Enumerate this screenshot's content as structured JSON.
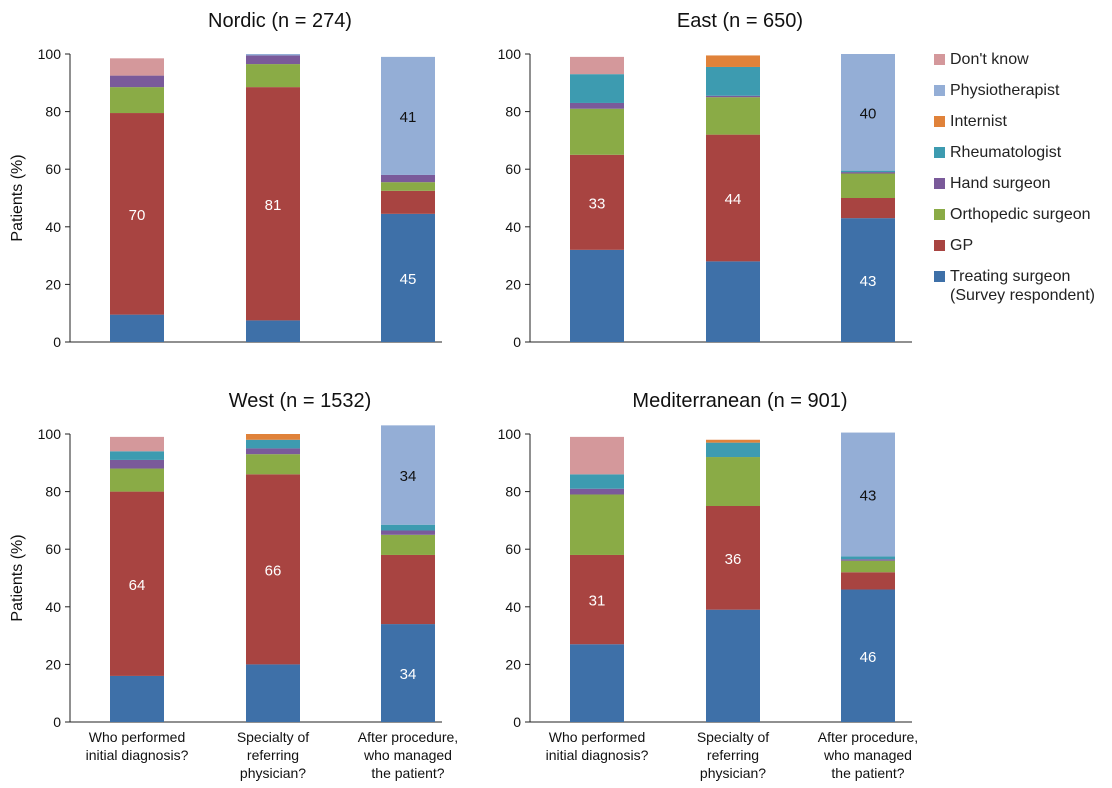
{
  "legend": [
    {
      "key": "dontknow",
      "label": "Don't know",
      "color": "#d4989b"
    },
    {
      "key": "physio",
      "label": "Physiotherapist",
      "color": "#94aed6"
    },
    {
      "key": "internist",
      "label": "Internist",
      "color": "#e0823a"
    },
    {
      "key": "rheum",
      "label": "Rheumatologist",
      "color": "#3d9bb0"
    },
    {
      "key": "hand",
      "label": "Hand surgeon",
      "color": "#7a5a9a"
    },
    {
      "key": "ortho",
      "label": "Orthopedic surgeon",
      "color": "#8aab46"
    },
    {
      "key": "gp",
      "label": "GP",
      "color": "#a84441"
    },
    {
      "key": "treating",
      "label": "Treating surgeon\n(Survey respondent)",
      "color": "#3e70a8"
    }
  ],
  "chart_data": [
    {
      "type": "bar",
      "stacked": true,
      "title": "Nordic (n = 274)",
      "ylabel": "Patients (%)",
      "ylim": [
        0,
        100
      ],
      "yticks": [
        0,
        20,
        40,
        60,
        80,
        100
      ],
      "categories": [
        "Who performed\ninitial diagnosis?",
        "Specialty of\nreferring\nphysician?",
        "After procedure,\nwho managed\nthe patient?"
      ],
      "series": [
        {
          "name": "Treating surgeon (Survey respondent)",
          "values": [
            9.5,
            7.5,
            44.5
          ],
          "labels": [
            "",
            "",
            "45"
          ]
        },
        {
          "name": "GP",
          "values": [
            70,
            81,
            8
          ],
          "labels": [
            "70",
            "81",
            ""
          ]
        },
        {
          "name": "Orthopedic surgeon",
          "values": [
            9,
            8,
            3
          ],
          "labels": [
            "",
            "",
            ""
          ]
        },
        {
          "name": "Hand surgeon",
          "values": [
            4,
            3,
            2.5
          ],
          "labels": [
            "",
            "",
            ""
          ]
        },
        {
          "name": "Rheumatologist",
          "values": [
            0,
            0,
            0
          ],
          "labels": [
            "",
            "",
            ""
          ]
        },
        {
          "name": "Internist",
          "values": [
            0,
            0,
            0
          ],
          "labels": [
            "",
            "",
            ""
          ]
        },
        {
          "name": "Physiotherapist",
          "values": [
            0,
            0.5,
            41
          ],
          "labels": [
            "",
            "",
            "41"
          ]
        },
        {
          "name": "Don't know",
          "values": [
            6,
            0,
            0
          ],
          "labels": [
            "",
            "",
            ""
          ]
        }
      ]
    },
    {
      "type": "bar",
      "stacked": true,
      "title": "East (n = 650)",
      "ylabel": "",
      "ylim": [
        0,
        100
      ],
      "yticks": [
        0,
        20,
        40,
        60,
        80,
        100
      ],
      "categories": [
        "Who performed\ninitial diagnosis?",
        "Specialty of\nreferring\nphysician?",
        "After procedure,\nwho managed\nthe patient?"
      ],
      "series": [
        {
          "name": "Treating surgeon (Survey respondent)",
          "values": [
            32,
            28,
            43
          ],
          "labels": [
            "",
            "",
            "43"
          ]
        },
        {
          "name": "GP",
          "values": [
            33,
            44,
            7
          ],
          "labels": [
            "33",
            "44",
            ""
          ]
        },
        {
          "name": "Orthopedic surgeon",
          "values": [
            16,
            13,
            8.5
          ],
          "labels": [
            "",
            "",
            ""
          ]
        },
        {
          "name": "Hand surgeon",
          "values": [
            2,
            0.5,
            0.5
          ],
          "labels": [
            "",
            "",
            ""
          ]
        },
        {
          "name": "Rheumatologist",
          "values": [
            10,
            10,
            0.5
          ],
          "labels": [
            "",
            "",
            ""
          ]
        },
        {
          "name": "Internist",
          "values": [
            0,
            4,
            0
          ],
          "labels": [
            "",
            "",
            ""
          ]
        },
        {
          "name": "Physiotherapist",
          "values": [
            0,
            0,
            40.5
          ],
          "labels": [
            "",
            "",
            "40"
          ]
        },
        {
          "name": "Don't know",
          "values": [
            6,
            0,
            0
          ],
          "labels": [
            "",
            "",
            ""
          ]
        }
      ]
    },
    {
      "type": "bar",
      "stacked": true,
      "title": "West (n = 1532)",
      "ylabel": "Patients (%)",
      "ylim": [
        0,
        100
      ],
      "yticks": [
        0,
        20,
        40,
        60,
        80,
        100
      ],
      "categories": [
        "Who performed\ninitial diagnosis?",
        "Specialty of\nreferring\nphysician?",
        "After procedure,\nwho managed\nthe patient?"
      ],
      "series": [
        {
          "name": "Treating surgeon (Survey respondent)",
          "values": [
            16,
            20,
            34
          ],
          "labels": [
            "",
            "",
            "34"
          ]
        },
        {
          "name": "GP",
          "values": [
            64,
            66,
            24
          ],
          "labels": [
            "64",
            "66",
            ""
          ]
        },
        {
          "name": "Orthopedic surgeon",
          "values": [
            8,
            7,
            7
          ],
          "labels": [
            "",
            "",
            ""
          ]
        },
        {
          "name": "Hand surgeon",
          "values": [
            3,
            2,
            1.5
          ],
          "labels": [
            "",
            "",
            ""
          ]
        },
        {
          "name": "Rheumatologist",
          "values": [
            3,
            3,
            2
          ],
          "labels": [
            "",
            "",
            ""
          ]
        },
        {
          "name": "Internist",
          "values": [
            0,
            2,
            0
          ],
          "labels": [
            "",
            "",
            ""
          ]
        },
        {
          "name": "Physiotherapist",
          "values": [
            0,
            0,
            34.5
          ],
          "labels": [
            "",
            "",
            "34"
          ]
        },
        {
          "name": "Don't know",
          "values": [
            5,
            0,
            0
          ],
          "labels": [
            "",
            "",
            ""
          ]
        }
      ]
    },
    {
      "type": "bar",
      "stacked": true,
      "title": "Mediterranean (n = 901)",
      "ylabel": "",
      "ylim": [
        0,
        100
      ],
      "yticks": [
        0,
        20,
        40,
        60,
        80,
        100
      ],
      "categories": [
        "Who performed\ninitial diagnosis?",
        "Specialty of\nreferring\nphysician?",
        "After procedure,\nwho managed\nthe patient?"
      ],
      "series": [
        {
          "name": "Treating surgeon (Survey respondent)",
          "values": [
            27,
            39,
            46
          ],
          "labels": [
            "",
            "",
            "46"
          ]
        },
        {
          "name": "GP",
          "values": [
            31,
            36,
            6
          ],
          "labels": [
            "31",
            "36",
            ""
          ]
        },
        {
          "name": "Orthopedic surgeon",
          "values": [
            21,
            17,
            4
          ],
          "labels": [
            "",
            "",
            ""
          ]
        },
        {
          "name": "Hand surgeon",
          "values": [
            2,
            0,
            0.5
          ],
          "labels": [
            "",
            "",
            ""
          ]
        },
        {
          "name": "Rheumatologist",
          "values": [
            5,
            5,
            1
          ],
          "labels": [
            "",
            "",
            ""
          ]
        },
        {
          "name": "Internist",
          "values": [
            0,
            1,
            0
          ],
          "labels": [
            "",
            "",
            ""
          ]
        },
        {
          "name": "Physiotherapist",
          "values": [
            0,
            0,
            43
          ],
          "labels": [
            "",
            "",
            "43"
          ]
        },
        {
          "name": "Don't know",
          "values": [
            13,
            0,
            0
          ],
          "labels": [
            "",
            "",
            ""
          ]
        }
      ]
    }
  ]
}
